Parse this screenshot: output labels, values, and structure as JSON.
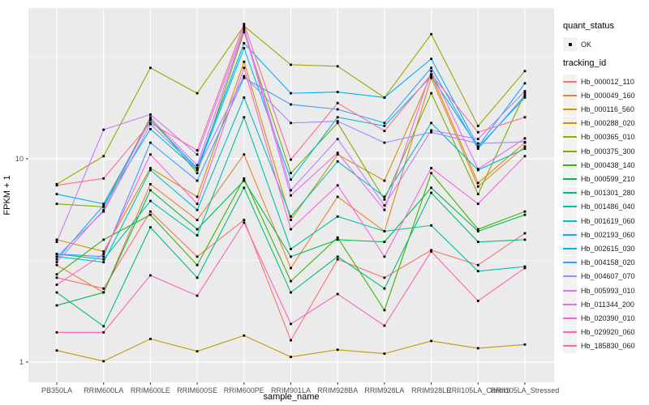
{
  "chart_data": {
    "type": "line",
    "title": "",
    "xlabel": "sample_name",
    "ylabel": "FPKM + 1",
    "x_categories": [
      "PB350LA",
      "RRIM600LA",
      "RRIM600LE",
      "RRIM600SE",
      "RRIM600PE",
      "RRIM901LA",
      "RRIM928BA",
      "RRIM928LA",
      "RRIM928LE",
      "RRII105LA_Control",
      "RRII105LA_Stressed"
    ],
    "y_scale": "log10",
    "y_ticks": [
      "1",
      "10"
    ],
    "y_tick_values": [
      1,
      10
    ],
    "y_minor_values": [
      3.1623,
      31.6228
    ],
    "ylim": [
      0.81,
      55
    ],
    "grid": true,
    "legend_position": "right",
    "point_symbol": "black-square",
    "legend": {
      "quant_status": {
        "title": "quant_status",
        "items": [
          {
            "label": "OK",
            "symbol": "black-point"
          }
        ]
      },
      "tracking_id": {
        "title": "tracking_id"
      }
    },
    "colors": {
      "panel_bg": "#EBEBEB",
      "grid": "#FFFFFF",
      "point": "#000000",
      "tick_text": "#4D4D4D",
      "legend_key_bg": "#F2F2F2"
    },
    "series": [
      {
        "name": "Hb_000012_110",
        "color": "#F8766D",
        "values": [
          2.6,
          2.3,
          5.5,
          3.3,
          5.0,
          1.28,
          3.2,
          2.6,
          3.55,
          3.0,
          4.3
        ]
      },
      {
        "name": "Hb_000049_160",
        "color": "#EA8331",
        "values": [
          3.0,
          2.2,
          7.5,
          5.0,
          10.5,
          2.9,
          6.5,
          4.4,
          25.0,
          7.3,
          11.5
        ]
      },
      {
        "name": "Hb_000116_560",
        "color": "#D89000",
        "values": [
          4.0,
          3.5,
          9.0,
          6.5,
          30.0,
          5.0,
          10.5,
          7.8,
          26.0,
          7.6,
          12.0
        ]
      },
      {
        "name": "Hb_000288_020",
        "color": "#C09B00",
        "values": [
          1.14,
          1.01,
          1.3,
          1.13,
          1.35,
          1.06,
          1.15,
          1.1,
          1.27,
          1.17,
          1.22
        ]
      },
      {
        "name": "Hb_000365_010",
        "color": "#A3A500",
        "values": [
          7.5,
          10.3,
          28,
          21,
          45,
          29,
          28.5,
          20,
          41,
          14.5,
          27
        ]
      },
      {
        "name": "Hb_000375_300",
        "color": "#7CAE00",
        "values": [
          6.0,
          5.8,
          16,
          8.5,
          42,
          8.5,
          15,
          6.3,
          21,
          6.7,
          21
        ]
      },
      {
        "name": "Hb_000438_140",
        "color": "#39B600",
        "values": [
          2.7,
          4.0,
          5.3,
          3.0,
          8.0,
          2.5,
          4.1,
          1.8,
          8.5,
          4.5,
          5.5
        ]
      },
      {
        "name": "Hb_000599_210",
        "color": "#00BB4E",
        "values": [
          1.9,
          2.2,
          7.0,
          4.5,
          7.8,
          3.3,
          4.0,
          3.9,
          7.2,
          4.4,
          5.3
        ]
      },
      {
        "name": "Hb_001301_280",
        "color": "#00BF7D",
        "values": [
          2.2,
          1.5,
          4.6,
          2.6,
          7.2,
          2.2,
          3.3,
          2.3,
          6.8,
          3.9,
          4.0
        ]
      },
      {
        "name": "Hb_001486_040",
        "color": "#00C1A3",
        "values": [
          3.4,
          3.2,
          6.2,
          4.2,
          16,
          3.6,
          5.2,
          4.4,
          4.7,
          2.8,
          2.95
        ]
      },
      {
        "name": "Hb_001619_060",
        "color": "#00BFC4",
        "values": [
          3.3,
          3.1,
          8.8,
          5.6,
          20,
          5.2,
          9.7,
          6.5,
          15,
          8.8,
          11.2
        ]
      },
      {
        "name": "Hb_002193_060",
        "color": "#00BAE0",
        "values": [
          3.2,
          5.9,
          14,
          8.8,
          35,
          7.9,
          16,
          14.5,
          25.5,
          11.4,
          20
        ]
      },
      {
        "name": "Hb_002615_030",
        "color": "#00B0F6",
        "values": [
          6.7,
          6.0,
          15.5,
          9.0,
          37,
          21,
          21.3,
          20,
          31,
          11.5,
          23.5
        ]
      },
      {
        "name": "Hb_004158_020",
        "color": "#35A2FF",
        "values": [
          3.4,
          3.3,
          12,
          7.8,
          25,
          18.5,
          17.5,
          15,
          28,
          11.2,
          20.5
        ]
      },
      {
        "name": "Hb_004607_070",
        "color": "#9590FF",
        "values": [
          3.3,
          5.5,
          14.8,
          8.9,
          25.5,
          15,
          15.3,
          12,
          13.5,
          11.9,
          12.1
        ]
      },
      {
        "name": "Hb_005993_010",
        "color": "#C77CFF",
        "values": [
          3.9,
          13.9,
          16.5,
          10.5,
          44,
          7.0,
          12.5,
          5.9,
          13.8,
          12.5,
          21.5
        ]
      },
      {
        "name": "Hb_011344_200",
        "color": "#E76BF3",
        "values": [
          3.1,
          5.6,
          15.8,
          9.3,
          43,
          6.6,
          10.7,
          5.6,
          27,
          8.9,
          12.6
        ]
      },
      {
        "name": "Hb_020390_010",
        "color": "#FA62DB",
        "values": [
          2.4,
          3.4,
          10.5,
          6.0,
          28,
          4.5,
          7.4,
          3.3,
          9.0,
          6.0,
          10.3
        ]
      },
      {
        "name": "Hb_029920_060",
        "color": "#FF62BC",
        "values": [
          1.4,
          1.4,
          2.67,
          2.12,
          4.85,
          1.54,
          2.16,
          1.51,
          3.5,
          2.0,
          2.9
        ]
      },
      {
        "name": "Hb_185830_060",
        "color": "#FF6A98",
        "values": [
          7.4,
          8.0,
          15.0,
          11.0,
          46,
          9.9,
          18.8,
          13.7,
          26,
          13.5,
          16
        ]
      }
    ]
  }
}
